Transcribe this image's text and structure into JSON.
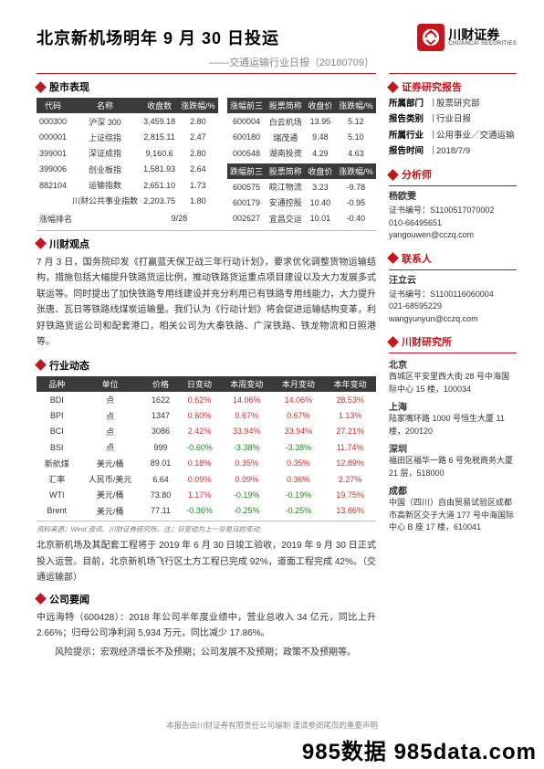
{
  "header": {
    "title": "北京新机场明年 9 月 30 日投运",
    "subtitle": "——交通运输行业日报（20180709）",
    "logo_cn": "川财证券",
    "logo_en": "CHUANCAI SECURITIES"
  },
  "colors": {
    "brand": "#c4161c",
    "table_head_bg": "#3a3a3a",
    "pos": "#d22d2d",
    "neg": "#1a8e1a"
  },
  "market_section": {
    "title": "股市表现",
    "left_headers": [
      "代码",
      "名称",
      "收盘数",
      "涨跌幅/%"
    ],
    "left_rows": [
      [
        "000300",
        "沪深 300",
        "3,459.18",
        "2.80"
      ],
      [
        "000001",
        "上证综指",
        "2,815.11",
        "2.47"
      ],
      [
        "399001",
        "深证成指",
        "9,160.6",
        "2.80"
      ],
      [
        "399006",
        "创业板指",
        "1,581.93",
        "2.64"
      ],
      [
        "882104",
        "运输指数",
        "2,651.10",
        "1.73"
      ],
      [
        "",
        "川财公共事业指数",
        "2,203.75",
        "1.80"
      ]
    ],
    "right_top_headers": [
      "涨幅前三",
      "股票简称",
      "收盘价",
      "涨跌幅/%"
    ],
    "right_top_rows": [
      [
        "600004",
        "白云机场",
        "13.95",
        "5.12"
      ],
      [
        "600180",
        "瑞茂通",
        "9.48",
        "5.10"
      ],
      [
        "000548",
        "湖南投资",
        "4.29",
        "4.63"
      ]
    ],
    "right_bot_headers": [
      "跌幅前三",
      "股票简称",
      "收盘价",
      "涨跌幅/%"
    ],
    "right_bot_rows": [
      [
        "600575",
        "皖江物流",
        "3.23",
        "-9.78"
      ],
      [
        "600179",
        "安通控股",
        "10.40",
        "-0.95"
      ],
      [
        "002627",
        "宜昌交运",
        "10.01",
        "-0.40"
      ]
    ],
    "rank_label": "涨幅排名",
    "rank_val": "9/28"
  },
  "viewpoint": {
    "title": "川财观点",
    "body": "7 月 3 日，国务院印发《打赢蓝天保卫战三年行动计划》，要求优化调整货物运输结构，措施包括大幅提升铁路货运比例，推动铁路货运重点项目建设以及大力发展多式联运等。同时提出了加快铁路专用线建设并充分利用已有铁路专用线能力，大力提升张唐、瓦日等铁路线煤炭运输量。我们认为《行动计划》将会促进运输结构变革，利好铁路货运公司和配套港口，相关公司为大秦铁路、广深铁路、铁龙物流和日照港等。"
  },
  "industry": {
    "title": "行业动态",
    "headers": [
      "品种",
      "单位",
      "价格",
      "日变动",
      "本周变动",
      "本月变动",
      "本年变动"
    ],
    "rows": [
      {
        "c": [
          "BDI",
          "点",
          "1622",
          "0.62%",
          "14.06%",
          "14.06%",
          "28.53%"
        ],
        "sign": [
          0,
          0,
          0,
          1,
          1,
          1,
          1
        ]
      },
      {
        "c": [
          "BPI",
          "点",
          "1347",
          "0.60%",
          "0.67%",
          "0.67%",
          "1.13%"
        ],
        "sign": [
          0,
          0,
          0,
          1,
          1,
          1,
          1
        ]
      },
      {
        "c": [
          "BCI",
          "点",
          "3086",
          "2.42%",
          "33.94%",
          "33.94%",
          "27.21%"
        ],
        "sign": [
          0,
          0,
          0,
          1,
          1,
          1,
          1
        ]
      },
      {
        "c": [
          "BSI",
          "点",
          "999",
          "-0.60%",
          "-3.38%",
          "-3.38%",
          "11.74%"
        ],
        "sign": [
          0,
          0,
          0,
          -1,
          -1,
          -1,
          1
        ]
      },
      {
        "c": [
          "新航煤",
          "美元/桶",
          "89.01",
          "0.18%",
          "0.35%",
          "0.35%",
          "12.89%"
        ],
        "sign": [
          0,
          0,
          0,
          1,
          1,
          1,
          1
        ]
      },
      {
        "c": [
          "汇率",
          "人民币/美元",
          "6.64",
          "0.09%",
          "0.09%",
          "0.36%",
          "2.27%"
        ],
        "sign": [
          0,
          0,
          0,
          1,
          1,
          1,
          1
        ]
      },
      {
        "c": [
          "WTI",
          "美元/桶",
          "73.80",
          "1.17%",
          "-0.19%",
          "-0.19%",
          "19.75%"
        ],
        "sign": [
          0,
          0,
          0,
          1,
          -1,
          -1,
          1
        ]
      },
      {
        "c": [
          "Brent",
          "美元/桶",
          "77.11",
          "-0.36%",
          "-0.25%",
          "-0.25%",
          "13.66%"
        ],
        "sign": [
          0,
          0,
          0,
          -1,
          -1,
          -1,
          1
        ]
      }
    ],
    "source": "资料来源：Wind 资讯、川财证券研究所。注：日变动为上一交易日的变动",
    "body": "北京新机场及其配套工程将于 2019 年 6 月 30 日竣工验收，2019 年 9 月 30 日正式投入运营。目前，北京新机场飞行区土方工程已完成 92%，道面工程完成 42%。（交通运输部）"
  },
  "company": {
    "title": "公司要闻",
    "body": "中远海特（600428）：2018 年公司半年度业绩中，营业总收入 34 亿元，同比上升 2.66%；归母公司净利润 5,934 万元，同比减少 17.86%。",
    "risk": "风险提示：宏观经济增长不及预期；公司发展不及预期；政策不及预期等。"
  },
  "side": {
    "report_title": "证券研究报告",
    "meta": [
      {
        "label": "所属部门",
        "val": "股票研究部"
      },
      {
        "label": "报告类别",
        "val": "行业日报"
      },
      {
        "label": "所属行业",
        "val": "公用事业／交通运输"
      },
      {
        "label": "报告时间",
        "val": "2018/7/9"
      }
    ],
    "analyst_title": "分析师",
    "analyst": {
      "name": "杨欧雯",
      "lines": [
        "证书编号：S1100517070002",
        "010-66495651",
        "yangouwen@cczq.com"
      ]
    },
    "contact_title": "联系人",
    "contact": {
      "name": "汪立云",
      "lines": [
        "证书编号：S1100116060004",
        "021-68595229",
        "wangyunyun@cczq.com"
      ]
    },
    "institute_title": "川财研究所",
    "offices": [
      {
        "city": "北京",
        "addr": "西城区平安里西大街 28 号中海国际中心 15 楼，100034"
      },
      {
        "city": "上海",
        "addr": "陆家嘴环路 1000 号恒生大厦 11 楼，200120"
      },
      {
        "city": "深圳",
        "addr": "福田区福华一路 6 号免税商务大厦 21 层，518000"
      },
      {
        "city": "成都",
        "addr": "中国（四川）自由贸易试验区成都市高新区交子大道 177 号中海国际中心 B 座 17 楼，610041"
      }
    ]
  },
  "footer": {
    "disclaimer": "本报告由川财证券有限责任公司编制  谨请参阅尾页的重要声明",
    "watermark": "985数据 985data.com"
  }
}
